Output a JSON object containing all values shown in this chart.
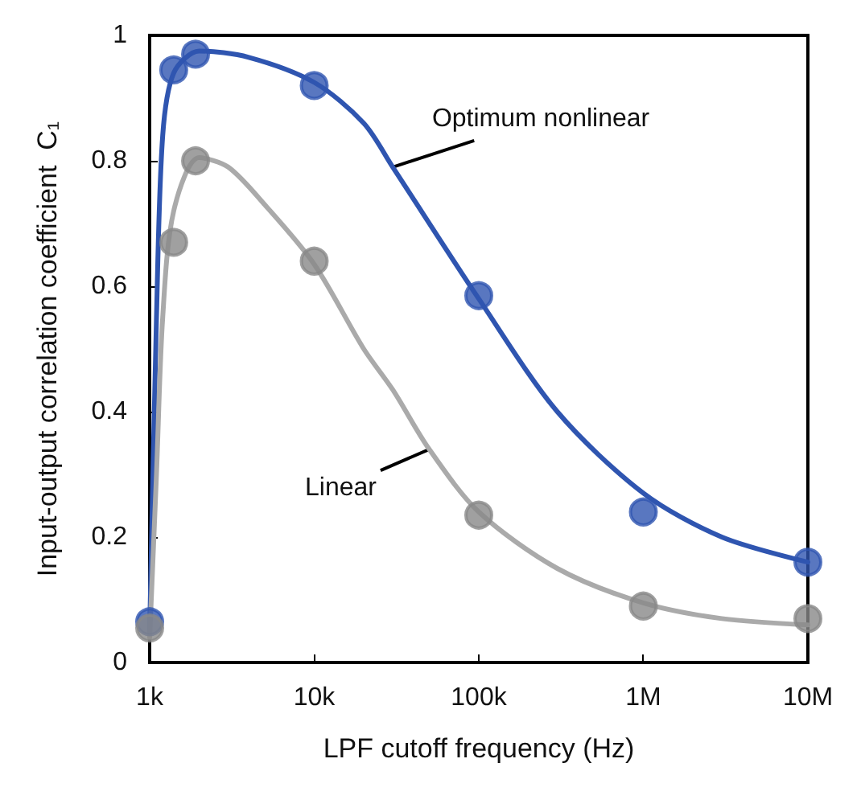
{
  "chart_data": {
    "type": "scatter",
    "xlabel": "LPF cutoff frequency (Hz)",
    "ylabel": "Input-output correlation coefficient  C₁",
    "log": "x",
    "xlim": [
      1000,
      10000000
    ],
    "xticks": [
      {
        "value": 1000,
        "label": "1k"
      },
      {
        "value": 10000,
        "label": "10k"
      },
      {
        "value": 100000,
        "label": "100k"
      },
      {
        "value": 1000000,
        "label": "1M"
      },
      {
        "value": 10000000,
        "label": "10M"
      }
    ],
    "ylim": [
      0,
      1
    ],
    "yticks": [
      0,
      0.2,
      0.4,
      0.6,
      0.8,
      1
    ],
    "grid": false,
    "legend": false,
    "marker": "circle",
    "series": [
      {
        "name": "Optimum nonlinear",
        "type": "line",
        "marker": "none",
        "color": "#2f55b0",
        "x": [
          1000,
          1100,
          1200,
          1400,
          2000,
          4000,
          10000,
          20000,
          30000,
          100000,
          300000,
          1000000,
          3000000,
          10000000
        ],
        "values": [
          0.05,
          0.55,
          0.84,
          0.94,
          0.975,
          0.965,
          0.925,
          0.86,
          0.79,
          0.58,
          0.4,
          0.27,
          0.2,
          0.16
        ]
      },
      {
        "name": "Linear",
        "type": "line",
        "marker": "none",
        "color": "#aaaaaa",
        "x": [
          1000,
          1100,
          1200,
          1400,
          2000,
          3000,
          5000,
          10000,
          20000,
          30000,
          50000,
          100000,
          300000,
          1000000,
          3000000,
          10000000
        ],
        "values": [
          0.04,
          0.3,
          0.55,
          0.72,
          0.805,
          0.79,
          0.73,
          0.635,
          0.5,
          0.435,
          0.34,
          0.24,
          0.15,
          0.095,
          0.07,
          0.06
        ]
      },
      {
        "color": "#2f55b0",
        "x": [
          1000,
          1400,
          1900,
          10000,
          100000,
          1000000,
          10000000
        ],
        "values": [
          0.065,
          0.945,
          0.97,
          0.92,
          0.585,
          0.24,
          0.16
        ]
      },
      {
        "color": "#888888",
        "x": [
          1000,
          1400,
          1900,
          10000,
          100000,
          1000000,
          10000000
        ],
        "values": [
          0.055,
          0.67,
          0.8,
          0.64,
          0.235,
          0.09,
          0.07
        ]
      }
    ]
  }
}
